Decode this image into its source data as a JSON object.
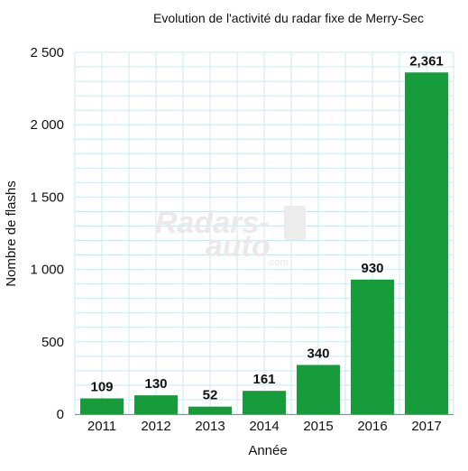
{
  "chart_data": {
    "type": "bar",
    "title": "Evolution de l'activité du radar fixe de Merry-Sec",
    "xlabel": "Année",
    "ylabel": "Nombre de flashs",
    "categories": [
      "2011",
      "2012",
      "2013",
      "2014",
      "2015",
      "2016",
      "2017"
    ],
    "values": [
      109,
      130,
      52,
      161,
      340,
      930,
      2361
    ],
    "data_labels": [
      "109",
      "130",
      "52",
      "161",
      "340",
      "930",
      "2,361"
    ],
    "ylim": [
      0,
      2500
    ],
    "yticks": [
      0,
      500,
      1000,
      1500,
      2000,
      2500
    ],
    "ytick_labels": [
      "0",
      "500",
      "1 000",
      "1 500",
      "2 000",
      "2 500"
    ],
    "bar_color": "#169c3a",
    "grid_color": "#c9e8f2",
    "grid": true,
    "legend": "none"
  },
  "watermark": {
    "line1": "Radars-",
    "line2": "auto",
    "line3": ".com"
  }
}
